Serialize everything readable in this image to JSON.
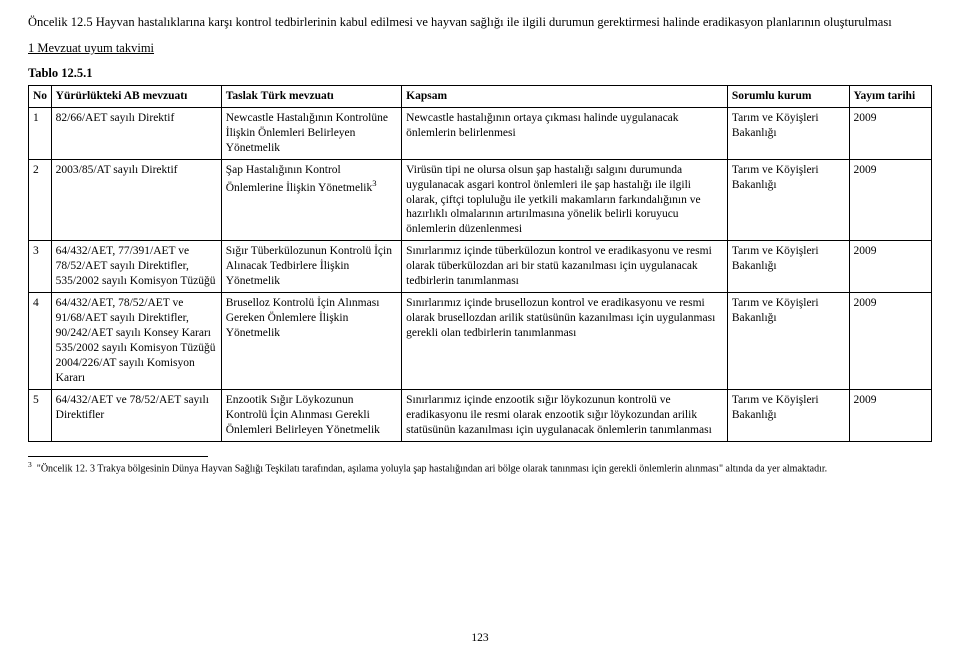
{
  "heading": {
    "num": "Öncelik 12.5",
    "text": " Hayvan hastalıklarına karşı kontrol tedbirlerinin kabul edilmesi ve hayvan sağlığı ile ilgili durumun gerektirmesi halinde eradikasyon planlarının oluşturulması"
  },
  "subheading": "1 Mevzuat uyum takvimi",
  "tablecap": "Tablo 12.5.1",
  "columns": {
    "c0": "No",
    "c1": "Yürürlükteki AB mevzuatı",
    "c2": "Taslak Türk mevzuatı",
    "c3": "Kapsam",
    "c4": "Sorumlu kurum",
    "c5": "Yayım tarihi"
  },
  "rows": [
    {
      "no": "1",
      "ab": "82/66/AET sayılı Direktif",
      "tr": "Newcastle Hastalığının Kontrolüne İlişkin Önlemleri Belirleyen Yönetmelik",
      "kapsam": "Newcastle hastalığının ortaya çıkması halinde uygulanacak önlemlerin belirlenmesi",
      "kurum": "Tarım ve Köyişleri Bakanlığı",
      "tarih": "2009"
    },
    {
      "no": "2",
      "ab": "2003/85/AT sayılı Direktif",
      "tr": "Şap Hastalığının Kontrol Önlemlerine İlişkin Yönetmelik",
      "tr_sup": "3",
      "kapsam": "Virüsün tipi ne olursa olsun şap hastalığı salgını durumunda uygulanacak asgari kontrol önlemleri ile şap hastalığı ile ilgili olarak, çiftçi topluluğu ile yetkili makamların farkındalığının ve hazırlıklı olmalarının artırılmasına yönelik belirli koruyucu önlemlerin düzenlenmesi",
      "kurum": "Tarım ve Köyişleri Bakanlığı",
      "tarih": "2009"
    },
    {
      "no": "3",
      "ab": "64/432/AET, 77/391/AET ve 78/52/AET sayılı Direktifler, 535/2002 sayılı Komisyon Tüzüğü",
      "tr": "Sığır Tüberkülozunun Kontrolü İçin Alınacak Tedbirlere İlişkin Yönetmelik",
      "kapsam": "Sınırlarımız içinde tüberkülozun kontrol ve eradikasyonu ve resmi olarak tüberkülozdan ari bir statü kazanılması için uygulanacak tedbirlerin tanımlanması",
      "kurum": "Tarım ve Köyişleri Bakanlığı",
      "tarih": "2009"
    },
    {
      "no": "4",
      "ab": "64/432/AET, 78/52/AET ve 91/68/AET sayılı Direktifler, 90/242/AET sayılı Konsey Kararı\n535/2002 sayılı Komisyon Tüzüğü\n2004/226/AT sayılı Komisyon Kararı",
      "tr": "Bruselloz Kontrolü İçin Alınması Gereken Önlemlere İlişkin Yönetmelik",
      "kapsam": "Sınırlarımız içinde brusellozun kontrol ve eradikasyonu ve resmi olarak brusellozdan arilik statüsünün kazanılması için uygulanması gerekli olan tedbirlerin tanımlanması",
      "kurum": "Tarım ve Köyişleri Bakanlığı",
      "tarih": "2009"
    },
    {
      "no": "5",
      "ab": "64/432/AET ve 78/52/AET sayılı Direktifler",
      "tr": "Enzootik Sığır Löykozunun Kontrolü İçin Alınması Gerekli Önlemleri Belirleyen Yönetmelik",
      "kapsam": "Sınırlarımız içinde enzootik sığır löykozunun kontrolü ve eradikasyonu ile resmi olarak enzootik sığır löykozundan arilik statüsünün kazanılması için uygulanacak önlemlerin tanımlanması",
      "kurum": "Tarım ve Köyişleri Bakanlığı",
      "tarih": "2009"
    }
  ],
  "footnote": {
    "sup": "3",
    "text": "  \"Öncelik 12. 3 Trakya bölgesinin Dünya Hayvan Sağlığı Teşkilatı tarafından, aşılama yoluyla şap hastalığından ari bölge olarak tanınması için gerekli önlemlerin alınması\" altında da yer almaktadır."
  },
  "pagenum": "123"
}
